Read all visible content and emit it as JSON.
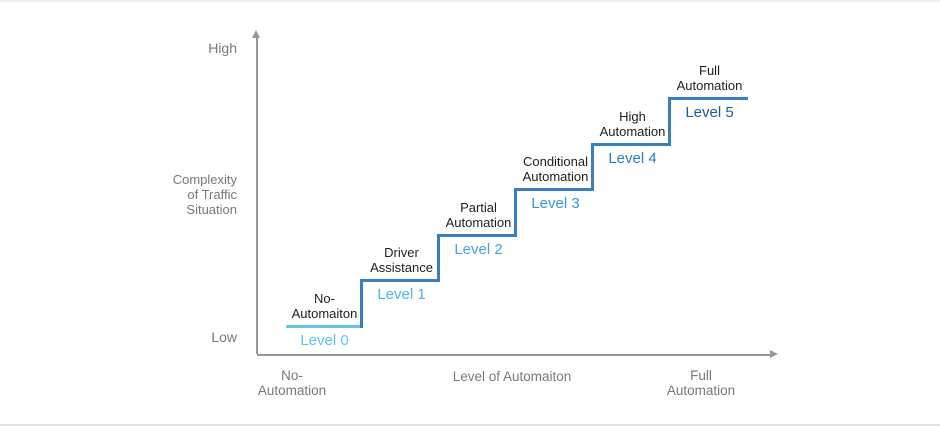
{
  "frame": {
    "background": "#ffffff",
    "border_color": "#dde4e9"
  },
  "y_axis": {
    "high_label": "High",
    "low_label": "Low",
    "title": "Complexity\nof Traffic\nSituation",
    "axis_color": "#979797",
    "label_color": "#75797d"
  },
  "x_axis": {
    "left_label": "No-\nAutomation",
    "title": "Level of Automaiton",
    "right_label": "Full\nAutomation",
    "axis_color": "#979797",
    "label_color": "#75797d"
  },
  "riser_color": "#3a7dc0",
  "step_name_color": "#1e1e1e",
  "steps": [
    {
      "name": "No-\nAutomaiton",
      "level": "Level 0",
      "level_color": "#5bc5f2",
      "line_color": "#66c3ec"
    },
    {
      "name": "Driver\nAssistance",
      "level": "Level 1",
      "level_color": "#4db4e7",
      "line_color": "#3a7dc0"
    },
    {
      "name": "Partial\nAutomation",
      "level": "Level 2",
      "level_color": "#44a6dc",
      "line_color": "#3a7dc0"
    },
    {
      "name": "Conditional\nAutomation",
      "level": "Level 3",
      "level_color": "#3c96cf",
      "line_color": "#3a7dc0"
    },
    {
      "name": "High\nAutomation",
      "level": "Level 4",
      "level_color": "#2e80ba",
      "line_color": "#3a7dc0"
    },
    {
      "name": "Full\nAutomation",
      "level": "Level 5",
      "level_color": "#1d5c94",
      "line_color": "#3a7dc0"
    }
  ]
}
